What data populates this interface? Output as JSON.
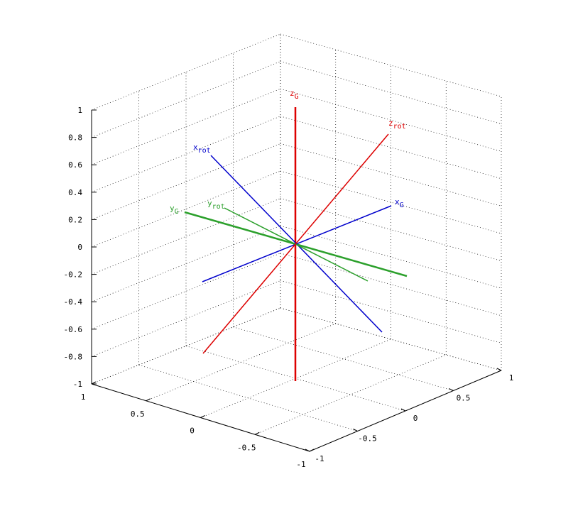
{
  "chart_data": {
    "type": "line",
    "title": "",
    "xlabel": "",
    "ylabel": "",
    "zlabel": "",
    "view": "3d",
    "grid": true,
    "xlim": [
      -1,
      1
    ],
    "ylim": [
      -1,
      1
    ],
    "zlim": [
      -1,
      1
    ],
    "z_ticks": [
      "-1",
      "-0.8",
      "-0.6",
      "-0.4",
      "-0.2",
      "0",
      "0.2",
      "0.4",
      "0.6",
      "0.8",
      "1"
    ],
    "left_axis_ticks": [
      "1",
      "0.5",
      "0",
      "-0.5",
      "-1"
    ],
    "right_axis_ticks": [
      "-1",
      "-0.5",
      "0",
      "0.5",
      "1"
    ],
    "series": [
      {
        "name": "xG",
        "label_main": "x",
        "label_sub": "G",
        "color": "#0000cc",
        "width": 1.5
      },
      {
        "name": "yG",
        "label_main": "y",
        "label_sub": "G",
        "color": "#2ca02c",
        "width": 2.5
      },
      {
        "name": "zG",
        "label_main": "z",
        "label_sub": "G",
        "color": "#dd0000",
        "width": 2.5
      },
      {
        "name": "xrot",
        "label_main": "x",
        "label_sub": "rot",
        "color": "#0000cc",
        "width": 1.5
      },
      {
        "name": "yrot",
        "label_main": "y",
        "label_sub": "rot",
        "color": "#2ca02c",
        "width": 1.5
      },
      {
        "name": "zrot",
        "label_main": "z",
        "label_sub": "rot",
        "color": "#dd0000",
        "width": 1.5
      }
    ]
  }
}
